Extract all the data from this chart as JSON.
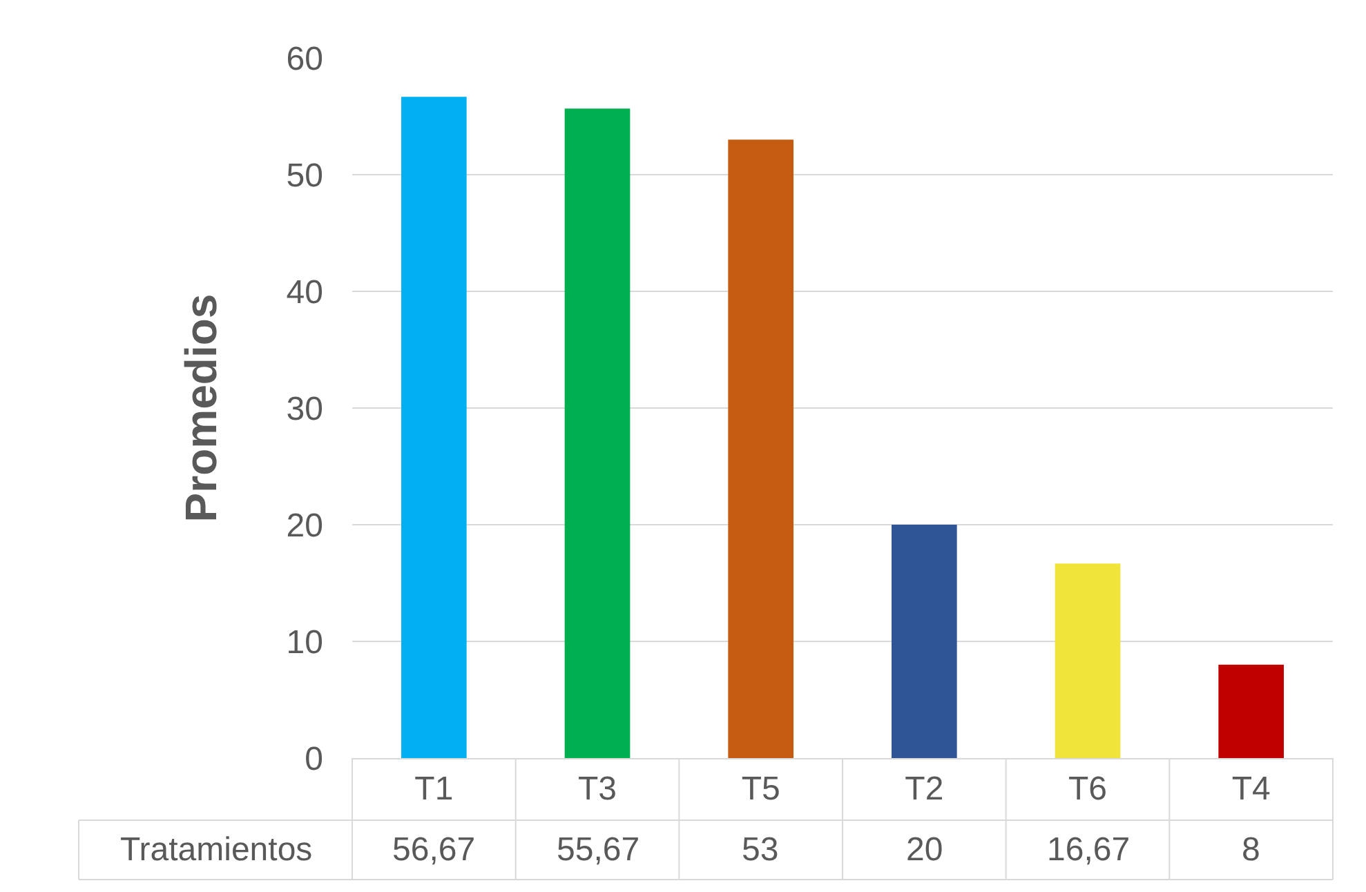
{
  "chart_data": {
    "type": "bar",
    "ylabel": "Promedios",
    "categories": [
      "T1",
      "T3",
      "T5",
      "T2",
      "T6",
      "T4"
    ],
    "series": [
      {
        "name": "Tratamientos",
        "values": [
          56.67,
          55.67,
          53,
          20,
          16.67,
          8
        ],
        "colors": [
          "#00b0f0",
          "#00b050",
          "#c55a11",
          "#2f5597",
          "#f0e43a",
          "#c00000"
        ],
        "value_labels": [
          "56,67",
          "55,67",
          "53",
          "20",
          "16,67",
          "8"
        ]
      }
    ],
    "ylim": [
      0,
      60
    ],
    "yticks": [
      0,
      10,
      20,
      30,
      40,
      50,
      60
    ],
    "grid": "y",
    "legend": false
  }
}
